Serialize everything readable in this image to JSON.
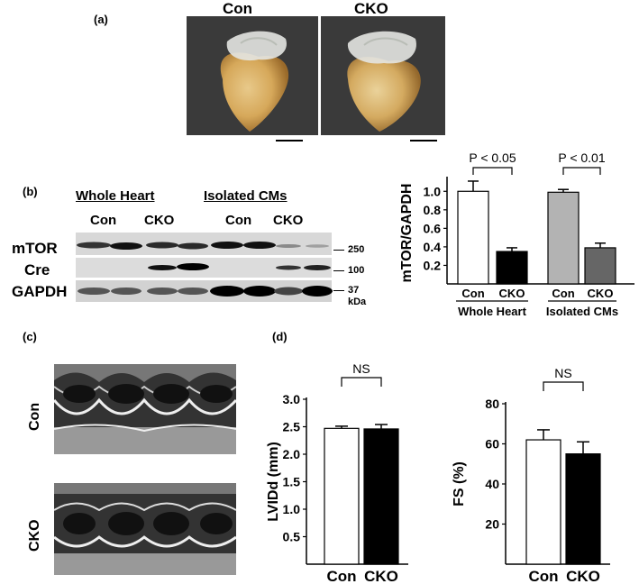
{
  "panel_a": {
    "label": "(a)",
    "con_title": "Con",
    "cko_title": "CKO"
  },
  "panel_b": {
    "label": "(b)",
    "group_whole": "Whole Heart",
    "group_isolated": "Isolated CMs",
    "lanes": [
      "Con",
      "CKO",
      "Con",
      "CKO"
    ],
    "rows": [
      "mTOR",
      "Cre",
      "GAPDH"
    ],
    "mw": [
      "250",
      "100",
      "37",
      "kDa"
    ],
    "chart": {
      "type": "bar",
      "ylabel": "mTOR/GAPDH",
      "ylim": [
        0,
        1.1
      ],
      "ticks": [
        "0.2",
        "0.4",
        "0.6",
        "0.8",
        "1.0"
      ],
      "categories": [
        "Con",
        "CKO",
        "Con",
        "CKO"
      ],
      "groups": [
        "Whole Heart",
        "Isolated CMs"
      ],
      "values": [
        1.0,
        0.35,
        0.99,
        0.39
      ],
      "errors": [
        0.11,
        0.04,
        0.03,
        0.05
      ],
      "colors": [
        "#ffffff",
        "#000000",
        "#b3b3b3",
        "#666666"
      ],
      "p_values": [
        "P < 0.05",
        "P < 0.01"
      ]
    }
  },
  "panel_c": {
    "label": "(c)",
    "con_label": "Con",
    "cko_label": "CKO"
  },
  "panel_d": {
    "label": "(d)",
    "chart_lvidd": {
      "type": "bar",
      "ylabel": "LVIDd (mm)",
      "ylim": [
        0,
        3.0
      ],
      "ticks": [
        "0.5",
        "1.0",
        "1.5",
        "2.0",
        "2.5",
        "3.0"
      ],
      "categories": [
        "Con",
        "CKO"
      ],
      "values": [
        2.47,
        2.46
      ],
      "errors": [
        0.04,
        0.08
      ],
      "colors": [
        "#ffffff",
        "#000000"
      ],
      "significance": "NS"
    },
    "chart_fs": {
      "type": "bar",
      "ylabel": "FS (%)",
      "ylim": [
        0,
        80
      ],
      "ticks": [
        "20",
        "40",
        "60",
        "80"
      ],
      "categories": [
        "Con",
        "CKO"
      ],
      "values": [
        62,
        55
      ],
      "errors": [
        5,
        6
      ],
      "colors": [
        "#ffffff",
        "#000000"
      ],
      "significance": "NS"
    }
  }
}
